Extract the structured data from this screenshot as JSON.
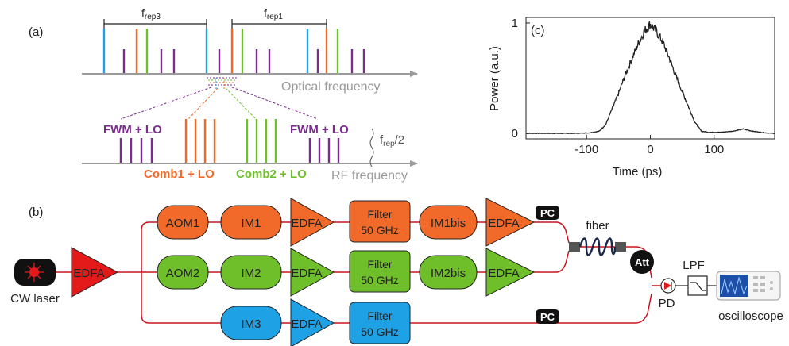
{
  "panel_labels": {
    "a": "(a)",
    "b": "(b)",
    "c": "(c)"
  },
  "spectrum": {
    "frep3": {
      "f": "f",
      "sub": "rep3"
    },
    "frep1": {
      "f": "f",
      "sub": "rep1"
    },
    "optical_axis": "Optical frequency",
    "rf_axis": "RF frequency",
    "fwm_left": "FWM + LO",
    "fwm_right": "FWM + LO",
    "comb1": "Comb1 + LO",
    "comb2": "Comb2 + LO",
    "frep_half": {
      "f": "f",
      "sub": "rep",
      "suffix": "/2"
    }
  },
  "chart_data": {
    "type": "line",
    "xlabel": "Time (ps)",
    "ylabel": "Power (a.u.)",
    "xlim": [
      -195,
      195
    ],
    "ylim": [
      -0.05,
      1.05
    ],
    "xticks": [
      -100,
      0,
      100
    ],
    "yticks": [
      0,
      1
    ],
    "grid": false,
    "series": [
      {
        "x": [
          -195,
          -160,
          -120,
          -95,
          -80,
          -70,
          -60,
          -50,
          -40,
          -30,
          -20,
          -10,
          0,
          10,
          20,
          30,
          40,
          50,
          60,
          70,
          80,
          90,
          110,
          130,
          145,
          160,
          180,
          195
        ],
        "y": [
          0,
          0,
          0,
          0.005,
          0.02,
          0.08,
          0.22,
          0.36,
          0.52,
          0.66,
          0.8,
          0.92,
          0.99,
          0.92,
          0.82,
          0.68,
          0.52,
          0.38,
          0.24,
          0.1,
          0.02,
          0.01,
          0.01,
          0.02,
          0.04,
          0.02,
          0.005,
          0
        ]
      }
    ]
  },
  "setup": {
    "cw_laser": "CW laser",
    "edfa_main": "EDFA",
    "aom1": "AOM1",
    "im1": "IM1",
    "edfa1": "EDFA",
    "filter1_line1": "Filter",
    "filter1_line2": "50 GHz",
    "im1bis": "IM1bis",
    "edfa1b": "EDFA",
    "aom2": "AOM2",
    "im2": "IM2",
    "edfa2": "EDFA",
    "filter2_line1": "Filter",
    "filter2_line2": "50 GHz",
    "im2bis": "IM2bis",
    "edfa2b": "EDFA",
    "im3": "IM3",
    "edfa3": "EDFA",
    "filter3_line1": "Filter",
    "filter3_line2": "50 GHz",
    "pc1": "PC",
    "pc2": "PC",
    "fiber": "fiber",
    "att": "Att",
    "pd": "PD",
    "lpf": "LPF",
    "oscilloscope": "oscilloscope"
  },
  "colors": {
    "orange": "#f26a2a",
    "green": "#6fbf2a",
    "blue": "#1fa1e6",
    "purple": "#7b2d8e",
    "red": "#e41a1a",
    "gray": "#9a9a9a"
  }
}
